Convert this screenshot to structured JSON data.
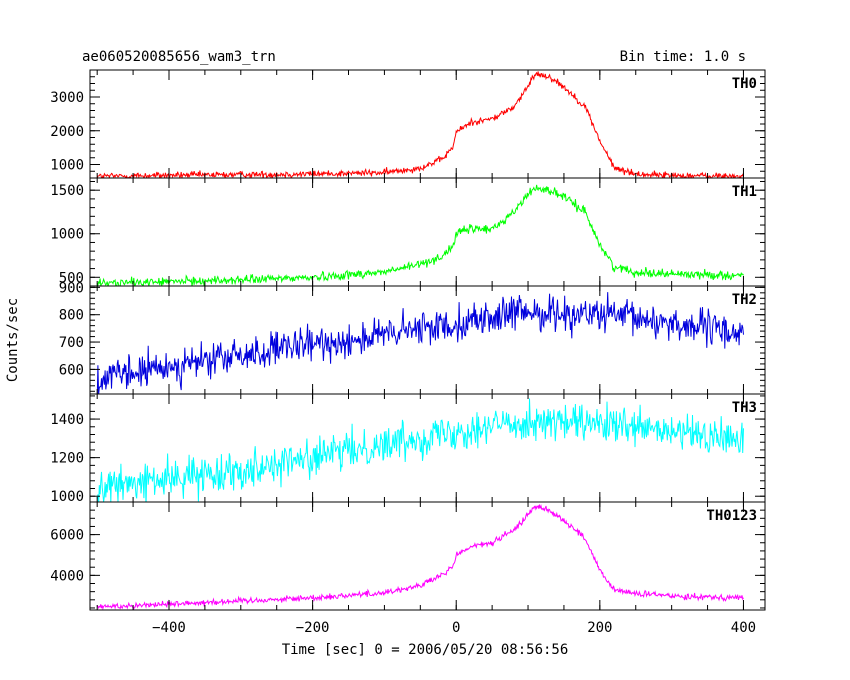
{
  "header": {
    "title": "ae060520085656_wam3_trn",
    "bin_time": "Bin time: 1.0 s"
  },
  "chart_data": {
    "type": "line",
    "title": "ae060520085656_wam3_trn",
    "xlabel": "Time [sec] 0 = 2006/05/20 08:56:56",
    "ylabel": "Counts/sec",
    "xlim": [
      -510,
      430
    ],
    "xticks": [
      -400,
      -200,
      0,
      200,
      400
    ],
    "grid": false,
    "panels": [
      {
        "name": "TH0",
        "color": "#ff0000",
        "ylim": [
          600,
          3800
        ],
        "yticks": [
          1000,
          2000,
          3000
        ],
        "noise": 50,
        "x": [
          -500,
          -400,
          -300,
          -200,
          -100,
          -50,
          -20,
          -5,
          0,
          20,
          50,
          80,
          100,
          110,
          130,
          150,
          180,
          200,
          220,
          250,
          300,
          350,
          400
        ],
        "values": [
          650,
          680,
          700,
          720,
          760,
          900,
          1150,
          1500,
          1950,
          2250,
          2350,
          2700,
          3300,
          3700,
          3600,
          3300,
          2700,
          1700,
          900,
          720,
          680,
          660,
          650
        ]
      },
      {
        "name": "TH1",
        "color": "#00ff00",
        "ylim": [
          400,
          1640
        ],
        "yticks": [
          500,
          1000,
          1500
        ],
        "noise": 25,
        "x": [
          -500,
          -400,
          -300,
          -200,
          -100,
          -50,
          -20,
          -5,
          0,
          20,
          50,
          80,
          100,
          110,
          130,
          150,
          180,
          200,
          220,
          250,
          300,
          350,
          400
        ],
        "values": [
          430,
          450,
          470,
          500,
          560,
          650,
          740,
          850,
          1000,
          1060,
          1050,
          1250,
          1450,
          1530,
          1500,
          1420,
          1250,
          870,
          620,
          560,
          540,
          530,
          520
        ]
      },
      {
        "name": "TH2",
        "color": "#0000dd",
        "ylim": [
          510,
          905
        ],
        "yticks": [
          600,
          700,
          800,
          900
        ],
        "noise": 32,
        "x": [
          -500,
          -400,
          -300,
          -200,
          -100,
          0,
          100,
          200,
          300,
          400
        ],
        "values": [
          560,
          610,
          650,
          690,
          725,
          770,
          810,
          800,
          770,
          730
        ]
      },
      {
        "name": "TH3",
        "color": "#00ffff",
        "ylim": [
          970,
          1530
        ],
        "yticks": [
          1000,
          1200,
          1400
        ],
        "noise": 48,
        "x": [
          -500,
          -400,
          -300,
          -200,
          -100,
          0,
          100,
          200,
          300,
          400
        ],
        "values": [
          1040,
          1090,
          1140,
          1200,
          1270,
          1340,
          1390,
          1370,
          1330,
          1290
        ]
      },
      {
        "name": "TH0123",
        "color": "#ff00ff",
        "ylim": [
          2300,
          7600
        ],
        "yticks": [
          4000,
          6000
        ],
        "noise": 75,
        "x": [
          -500,
          -400,
          -300,
          -200,
          -100,
          -50,
          -20,
          -5,
          0,
          20,
          50,
          80,
          100,
          110,
          130,
          150,
          180,
          200,
          220,
          250,
          300,
          350,
          400
        ],
        "values": [
          2450,
          2600,
          2750,
          2900,
          3150,
          3500,
          4000,
          4400,
          5000,
          5400,
          5600,
          6200,
          7000,
          7400,
          7200,
          6700,
          5800,
          4200,
          3300,
          3100,
          3000,
          2950,
          2900
        ]
      }
    ]
  }
}
